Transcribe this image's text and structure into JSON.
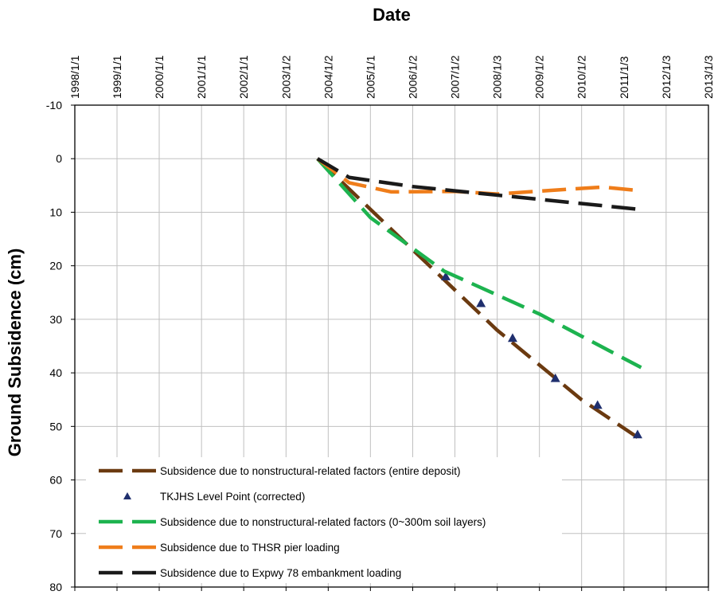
{
  "chart_data": {
    "type": "line",
    "xlabel": "Date",
    "ylabel": "Ground Subsidence (cm)",
    "x_axis_position": "top",
    "y_axis_inverted": true,
    "grid": true,
    "legend_position": "bottom-left",
    "xlim": [
      "1998/1/1",
      "2013/1/3"
    ],
    "x_ticks": [
      "1998/1/1",
      "1999/1/1",
      "2000/1/1",
      "2001/1/1",
      "2002/1/1",
      "2003/1/2",
      "2004/1/2",
      "2005/1/1",
      "2006/1/2",
      "2007/1/2",
      "2008/1/3",
      "2009/1/2",
      "2010/1/2",
      "2011/1/3",
      "2012/1/3",
      "2013/1/3"
    ],
    "ylim": [
      -10,
      80
    ],
    "y_ticks": [
      "-10",
      "0",
      "10",
      "20",
      "30",
      "40",
      "50",
      "60",
      "70",
      "80"
    ],
    "series": [
      {
        "name": "Subsidence due to nonstructural-related factors (entire deposit)",
        "style": "dashed-line",
        "color": "#6b3a10",
        "points": [
          [
            "2003/10/1",
            0
          ],
          [
            "2006/1/1",
            17
          ],
          [
            "2008/1/1",
            32
          ],
          [
            "2010/1/1",
            45
          ],
          [
            "2011/6/1",
            52.5
          ]
        ]
      },
      {
        "name": "TKJHS Level Point (corrected)",
        "style": "triangle-marker",
        "color": "#1f2f6e",
        "points": [
          [
            "2006/10/15",
            22
          ],
          [
            "2007/8/15",
            27
          ],
          [
            "2008/5/15",
            33.5
          ],
          [
            "2009/5/20",
            41
          ],
          [
            "2010/5/20",
            46
          ],
          [
            "2011/5/1",
            51.5
          ]
        ]
      },
      {
        "name": "Subsidence due to nonstructural-related factors (0~300m soil layers)",
        "style": "dashed-line",
        "color": "#1db34f",
        "points": [
          [
            "2003/10/1",
            0
          ],
          [
            "2005/1/1",
            11
          ],
          [
            "2006/10/1",
            21
          ],
          [
            "2009/1/1",
            29
          ],
          [
            "2011/6/1",
            39
          ]
        ]
      },
      {
        "name": "Subsidence due to THSR pier loading",
        "style": "dashed-line",
        "color": "#ef7d1a",
        "points": [
          [
            "2003/10/1",
            0
          ],
          [
            "2004/7/1",
            4.5
          ],
          [
            "2005/7/1",
            6.2
          ],
          [
            "2007/1/1",
            6.1
          ],
          [
            "2008/1/1",
            6.6
          ],
          [
            "2009/7/1",
            5.8
          ],
          [
            "2010/7/1",
            5.3
          ],
          [
            "2011/6/1",
            6
          ]
        ]
      },
      {
        "name": "Subsidence due to Expwy 78 embankment loading",
        "style": "dashed-line",
        "color": "#1a1a1a",
        "points": [
          [
            "2003/10/1",
            0
          ],
          [
            "2004/7/1",
            3.5
          ],
          [
            "2006/1/1",
            5.2
          ],
          [
            "2008/1/1",
            6.8
          ],
          [
            "2011/6/1",
            9.5
          ]
        ]
      }
    ]
  }
}
